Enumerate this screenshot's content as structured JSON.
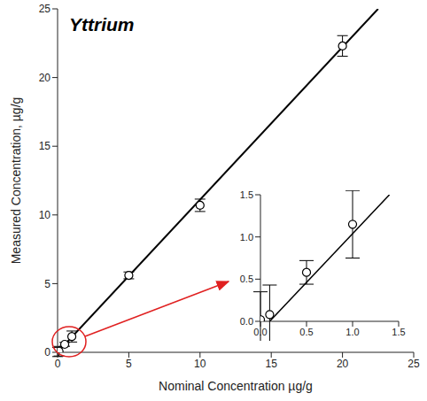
{
  "chart_data": [
    {
      "type": "scatter",
      "title": "Yttrium",
      "x_label": "Nominal Concentration µg/g",
      "y_label": "Measured Concentration, µg/g",
      "xlim": [
        0,
        25
      ],
      "ylim": [
        0,
        25
      ],
      "xticks": [
        0,
        5,
        10,
        15,
        20,
        25
      ],
      "yticks": [
        0,
        5,
        10,
        15,
        20,
        25
      ],
      "series": [
        {
          "type": "scatter",
          "color": "#000000",
          "marker": "circle",
          "x": [
            0,
            0.1,
            0.5,
            1,
            5,
            10,
            20
          ],
          "values": [
            0.02,
            0.08,
            0.58,
            1.15,
            5.6,
            10.7,
            22.3
          ],
          "errors": [
            0.33,
            0.35,
            0.14,
            0.4,
            0.25,
            0.45,
            0.75
          ]
        },
        {
          "type": "line",
          "color": "#000000",
          "line_style": "solid",
          "x": [
            0,
            22.5
          ],
          "values": [
            0,
            25
          ]
        }
      ]
    },
    {
      "type": "scatter",
      "xlim": [
        0,
        1.5
      ],
      "ylim": [
        0,
        1.5
      ],
      "xticks": [
        {
          "value": 0,
          "label": "0.0"
        },
        {
          "value": 0.5,
          "label": "0.5"
        },
        {
          "value": 1,
          "label": "1.0"
        },
        {
          "value": 1.5,
          "label": "1.5"
        }
      ],
      "yticks": [
        {
          "value": 0,
          "label": "0.0"
        },
        {
          "value": 0.5,
          "label": "0.5"
        },
        {
          "value": 1,
          "label": "1.0"
        },
        {
          "value": 1.5,
          "label": "1.5"
        }
      ],
      "series": [
        {
          "type": "scatter",
          "color": "#000000",
          "marker": "circle",
          "x": [
            0,
            0.1,
            0.5,
            1
          ],
          "values": [
            0.02,
            0.08,
            0.58,
            1.15
          ],
          "errors": [
            0.33,
            0.35,
            0.14,
            0.4
          ]
        },
        {
          "type": "line",
          "color": "#000000",
          "line_style": "solid",
          "x": [
            0.1,
            1.4
          ],
          "values": [
            0,
            1.5
          ]
        }
      ]
    }
  ]
}
